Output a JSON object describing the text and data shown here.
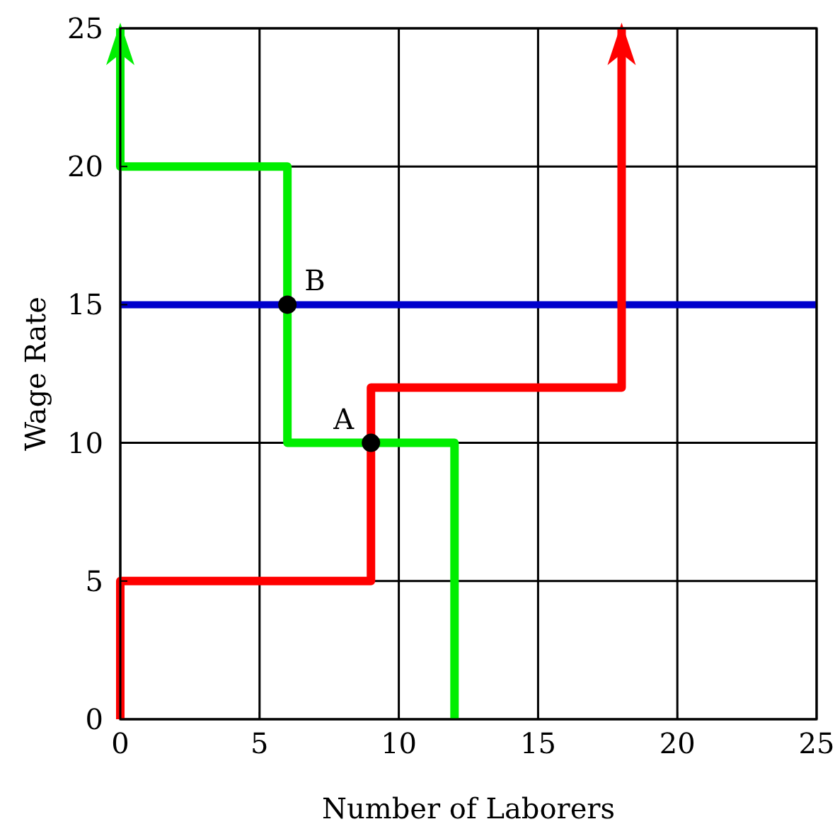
{
  "chart_data": {
    "type": "line",
    "xlabel": "Number of Laborers",
    "ylabel": "Wage Rate",
    "xlim": [
      0,
      25
    ],
    "ylim": [
      0,
      25
    ],
    "xticks": [
      0,
      5,
      10,
      15,
      20,
      25
    ],
    "yticks": [
      0,
      5,
      10,
      15,
      20,
      25
    ],
    "grid": true,
    "line_style": "solid",
    "series": [
      {
        "color": "#ff0000",
        "x": [
          0,
          0,
          9,
          9,
          18,
          18
        ],
        "values": [
          0,
          5,
          5,
          12,
          12,
          25
        ]
      },
      {
        "color": "#00ee00",
        "x": [
          12,
          12,
          6,
          6,
          0,
          0
        ],
        "values": [
          0,
          10,
          10,
          20,
          20,
          25
        ]
      },
      {
        "type": "scatter",
        "marker": "circle",
        "color": "#000000",
        "x": [
          9,
          6
        ],
        "values": [
          10,
          15
        ]
      }
    ],
    "ref_lines": [
      {
        "axis": "y",
        "value": 15,
        "color": "#0000cc"
      }
    ],
    "annotations": [
      {
        "text": "A",
        "x": 9,
        "y": 10
      },
      {
        "text": "B",
        "x": 6,
        "y": 15
      }
    ]
  }
}
